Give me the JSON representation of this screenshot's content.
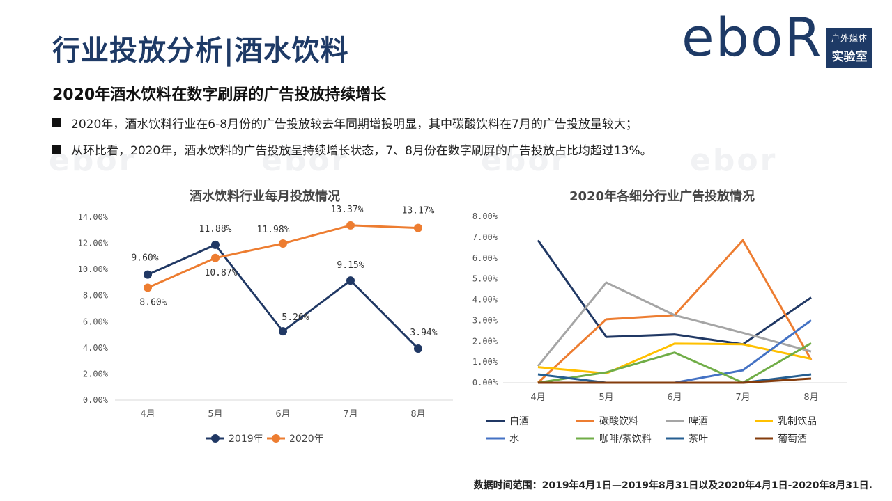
{
  "page": {
    "title": "行业投放分析|酒水饮料",
    "subtitle": "2020年酒水饮料在数字刷屏的广告投放持续增长",
    "bullets": [
      "2020年，酒水饮料行业在6-8月份的广告投放较去年同期增投明显，其中碳酸饮料在7月的广告投放量较大；",
      "从环比看，2020年，酒水饮料的广告投放呈持续增长状态，7、8月份在数字刷屏的广告投放占比均超过13%。"
    ],
    "footer": "数据时间范围：2019年4月1日—2019年8月31日以及2020年4月1日-2020年8月31日.",
    "watermark": "ebor"
  },
  "logo": {
    "word": "eboR",
    "tag_line1": "户外媒体",
    "tag_line2": "实验室"
  },
  "colors": {
    "brand": "#1e3a66",
    "series_2019": "#203864",
    "series_2020": "#ed7d31"
  },
  "chart_data": [
    {
      "type": "line",
      "title": "酒水饮料行业每月投放情况",
      "categories": [
        "4月",
        "5月",
        "6月",
        "7月",
        "8月"
      ],
      "ylim": [
        0,
        14
      ],
      "yticks": [
        "0.00%",
        "2.00%",
        "4.00%",
        "6.00%",
        "8.00%",
        "10.00%",
        "12.00%",
        "14.00%"
      ],
      "legend": "bottom",
      "series": [
        {
          "name": "2019年",
          "color": "#203864",
          "values": [
            9.6,
            11.88,
            5.26,
            9.15,
            3.94
          ],
          "labels": [
            "9.60%",
            "11.88%",
            "5.26%",
            "9.15%",
            "3.94%"
          ]
        },
        {
          "name": "2020年",
          "color": "#ed7d31",
          "values": [
            8.6,
            10.87,
            11.98,
            13.37,
            13.17
          ],
          "labels": [
            "8.60%",
            "10.87%",
            "11.98%",
            "13.37%",
            "13.17%"
          ]
        }
      ]
    },
    {
      "type": "line",
      "title": "2020年各细分行业广告投放情况",
      "categories": [
        "4月",
        "5月",
        "6月",
        "7月",
        "8月"
      ],
      "ylim": [
        0,
        8
      ],
      "yticks": [
        "0.00%",
        "1.00%",
        "2.00%",
        "3.00%",
        "4.00%",
        "5.00%",
        "6.00%",
        "7.00%",
        "8.00%"
      ],
      "legend": "bottom",
      "series": [
        {
          "name": "白酒",
          "color": "#203864",
          "values": [
            6.85,
            2.2,
            2.32,
            1.85,
            4.1
          ]
        },
        {
          "name": "碳酸饮料",
          "color": "#ed7d31",
          "values": [
            0.0,
            3.05,
            3.25,
            6.85,
            1.1
          ]
        },
        {
          "name": "啤酒",
          "color": "#a5a5a5",
          "values": [
            0.8,
            4.82,
            3.25,
            2.4,
            1.5
          ]
        },
        {
          "name": "乳制饮品",
          "color": "#ffc000",
          "values": [
            0.75,
            0.45,
            1.88,
            1.85,
            1.15
          ]
        },
        {
          "name": "水",
          "color": "#4472c4",
          "values": [
            0.0,
            0.0,
            0.0,
            0.6,
            3.0
          ]
        },
        {
          "name": "咖啡/茶饮料",
          "color": "#70ad47",
          "values": [
            0.0,
            0.5,
            1.45,
            0.0,
            1.9
          ]
        },
        {
          "name": "茶叶",
          "color": "#255e91",
          "values": [
            0.4,
            0.0,
            0.0,
            0.0,
            0.4
          ]
        },
        {
          "name": "葡萄酒",
          "color": "#843c0c",
          "values": [
            0.0,
            0.0,
            0.0,
            0.0,
            0.2
          ]
        }
      ]
    }
  ]
}
